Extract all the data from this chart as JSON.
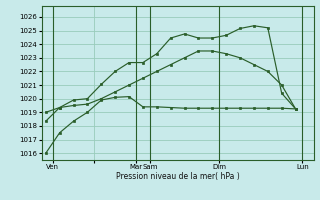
{
  "bg_color": "#c8eaea",
  "grid_color": "#99ccbb",
  "line_color": "#2a5e2a",
  "xlabel": "Pression niveau de la mer( hPa )",
  "ylim": [
    1015.5,
    1026.8
  ],
  "yticks": [
    1016,
    1017,
    1018,
    1019,
    1020,
    1021,
    1022,
    1023,
    1024,
    1025,
    1026
  ],
  "xlim": [
    -0.3,
    19.3
  ],
  "vline_positions": [
    0.5,
    6.5,
    7.5,
    12.5,
    18.5
  ],
  "xtick_positions": [
    0.5,
    3.5,
    6.5,
    7.5,
    12.5,
    18.5
  ],
  "xtick_labels": [
    "Ven",
    "",
    "Mar",
    "Sam",
    "Dim",
    "Lun"
  ],
  "line1_x": [
    0,
    1,
    2,
    3,
    4,
    5,
    6,
    7,
    8,
    9,
    10,
    11,
    12,
    13,
    14,
    15,
    16,
    17,
    18
  ],
  "line1_y": [
    1016.0,
    1017.5,
    1018.35,
    1019.0,
    1019.9,
    1020.1,
    1020.15,
    1019.4,
    1019.4,
    1019.35,
    1019.3,
    1019.3,
    1019.3,
    1019.3,
    1019.3,
    1019.3,
    1019.3,
    1019.3,
    1019.25
  ],
  "line2_x": [
    0,
    1,
    2,
    3,
    4,
    5,
    6,
    7,
    8,
    9,
    10,
    11,
    12,
    13,
    14,
    15,
    16,
    17,
    18
  ],
  "line2_y": [
    1018.35,
    1019.35,
    1019.9,
    1020.0,
    1021.05,
    1022.0,
    1022.65,
    1022.65,
    1023.3,
    1024.45,
    1024.75,
    1024.45,
    1024.45,
    1024.65,
    1025.15,
    1025.35,
    1025.2,
    1020.4,
    1019.25
  ],
  "line3_x": [
    0,
    1,
    2,
    3,
    4,
    5,
    6,
    7,
    8,
    9,
    10,
    11,
    12,
    13,
    14,
    15,
    16,
    17,
    18
  ],
  "line3_y": [
    1019.0,
    1019.35,
    1019.5,
    1019.6,
    1020.0,
    1020.5,
    1021.0,
    1021.5,
    1022.0,
    1022.5,
    1023.0,
    1023.5,
    1023.5,
    1023.3,
    1023.0,
    1022.5,
    1022.0,
    1021.0,
    1019.25
  ]
}
